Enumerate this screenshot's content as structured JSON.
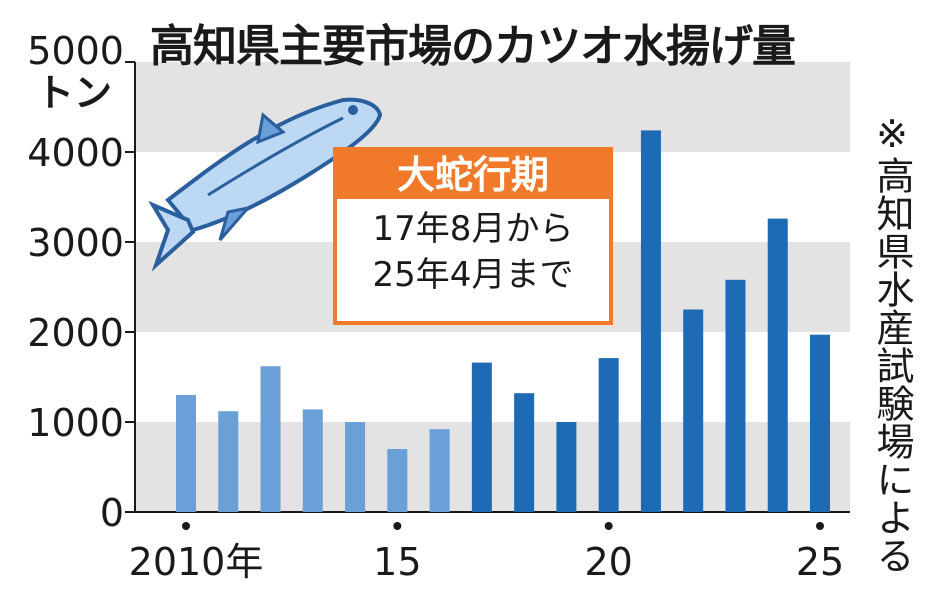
{
  "title": "高知県主要市場のカツオ水揚げ量",
  "unit_label": "5000\nトン",
  "source_note": "※高知県水産試験場による",
  "period_box": {
    "title": "大蛇行期",
    "line1": "17年8月から",
    "line2": "25年4月まで"
  },
  "colors": {
    "bar_normal": "#6a9fd8",
    "bar_meander": "#1f6ab5",
    "band": "#e3e3e3",
    "accent": "#f07a2a"
  },
  "chart_data": {
    "type": "bar",
    "title": "高知県主要市場のカツオ水揚げ量",
    "x": [
      2010,
      2011,
      2012,
      2013,
      2014,
      2015,
      2016,
      2017,
      2018,
      2019,
      2020,
      2021,
      2022,
      2023,
      2024,
      2025
    ],
    "values": [
      1300,
      1120,
      1620,
      1140,
      1000,
      700,
      920,
      1660,
      1320,
      1000,
      1710,
      4240,
      2250,
      2580,
      3260,
      1970
    ],
    "meander_period": [
      2017,
      2025
    ],
    "ylim": [
      0,
      5000
    ],
    "yticks": [
      "0",
      "1000",
      "2000",
      "3000",
      "4000",
      "5000"
    ],
    "xtick_labels": [
      {
        "x": 2010,
        "label": "2010年"
      },
      {
        "x": 2015,
        "label": "15"
      },
      {
        "x": 2020,
        "label": "20"
      },
      {
        "x": 2025,
        "label": "25"
      }
    ],
    "ylabel": "トン",
    "grid": "alternating gray bands"
  }
}
